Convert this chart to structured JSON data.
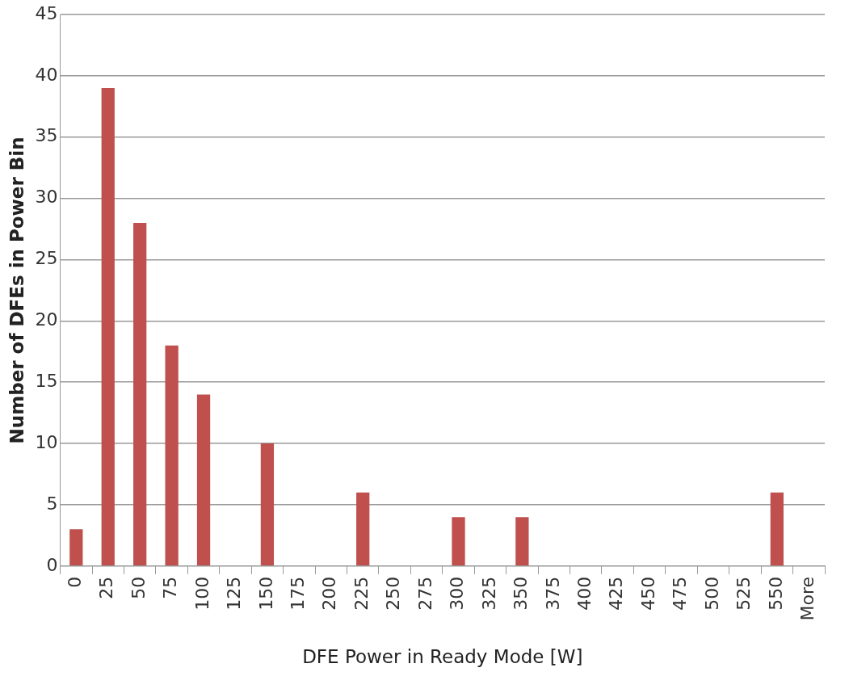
{
  "chart_data": {
    "type": "bar",
    "xlabel": "DFE Power in Ready Mode [W]",
    "ylabel": "Number of DFEs in Power Bin",
    "categories": [
      "0",
      "25",
      "50",
      "75",
      "100",
      "125",
      "150",
      "175",
      "200",
      "225",
      "250",
      "275",
      "300",
      "325",
      "350",
      "375",
      "400",
      "425",
      "450",
      "475",
      "500",
      "525",
      "550",
      "More"
    ],
    "values": [
      3,
      39,
      28,
      18,
      14,
      0,
      10,
      0,
      0,
      6,
      0,
      0,
      4,
      0,
      4,
      0,
      0,
      0,
      0,
      0,
      0,
      0,
      6,
      0
    ],
    "color": "#c0504d",
    "ylim": [
      0,
      45
    ],
    "yticks": [
      0,
      5,
      10,
      15,
      20,
      25,
      30,
      35,
      40,
      45
    ],
    "grid": "y",
    "legend": false
  }
}
